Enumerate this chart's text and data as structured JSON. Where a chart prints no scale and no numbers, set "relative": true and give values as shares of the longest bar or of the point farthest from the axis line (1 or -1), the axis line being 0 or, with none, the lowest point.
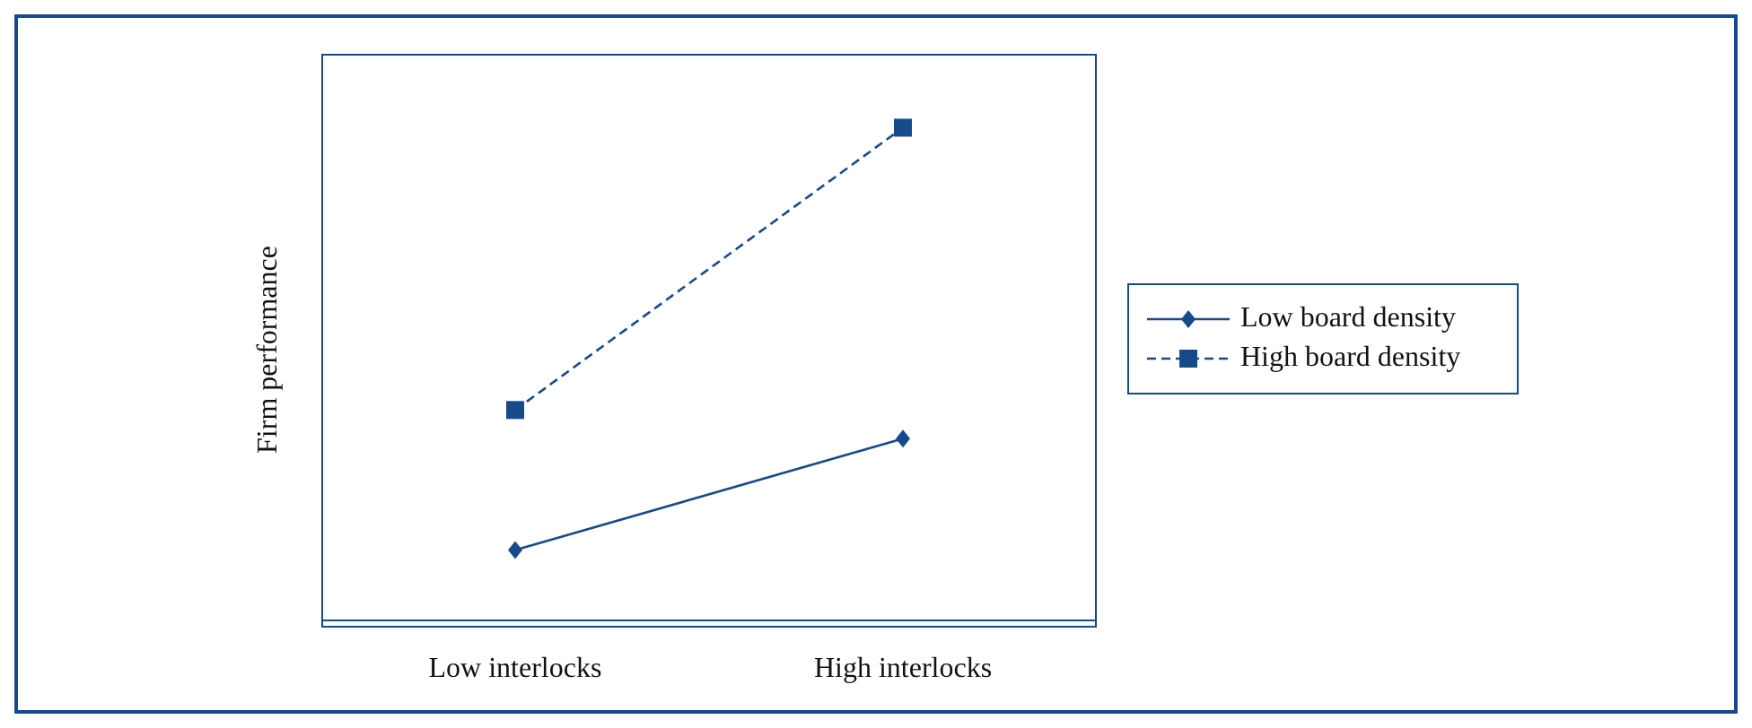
{
  "chart_data": {
    "type": "line",
    "relative": true,
    "ylabel": "Firm performance",
    "categories": [
      "Low interlocks",
      "High interlocks"
    ],
    "series": [
      {
        "name": "Low board density",
        "color": "#174a8a",
        "values": [
          0.143,
          0.369
        ],
        "marker": "diamond",
        "line_style": "solid"
      },
      {
        "name": "High board density",
        "color": "#174a8a",
        "values": [
          0.427,
          1
        ],
        "marker": "square",
        "line_style": "dashed"
      }
    ],
    "legend": "right",
    "grid": false
  }
}
